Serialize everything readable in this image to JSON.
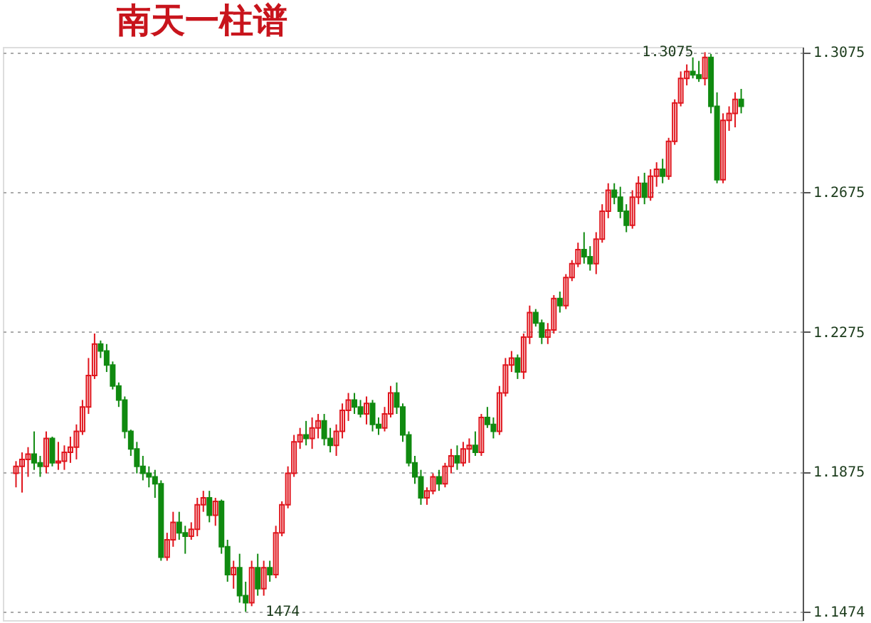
{
  "chart_data": {
    "type": "candlestick",
    "title": "南天一柱谱",
    "categories": [
      null,
      null,
      null,
      null,
      null,
      null,
      null,
      null,
      null,
      null,
      null,
      null,
      null,
      null,
      null,
      null,
      null,
      null,
      null,
      null,
      null,
      null,
      null,
      null,
      null,
      null,
      null,
      null,
      null,
      null,
      null,
      null,
      null,
      null,
      null,
      null,
      null,
      null,
      null,
      null,
      null,
      null,
      null,
      null,
      null,
      null,
      null,
      null,
      null,
      null,
      null,
      null,
      null,
      null,
      null,
      null,
      null,
      null,
      null,
      null,
      null,
      null,
      null,
      null,
      null,
      null,
      null,
      null,
      null,
      null,
      null,
      null,
      null,
      null,
      null,
      null,
      null,
      null,
      null,
      null,
      null,
      null,
      null,
      null,
      null,
      null,
      null,
      null,
      null,
      null,
      null,
      null,
      null,
      null,
      null,
      null,
      null,
      null,
      null,
      null,
      null,
      null,
      null,
      null,
      null,
      null,
      null,
      null,
      null,
      null,
      null,
      null,
      null,
      null,
      null,
      null,
      null,
      null,
      null,
      null,
      null
    ],
    "ohlc": [
      [
        1.187,
        1.1905,
        1.183,
        1.189
      ],
      [
        1.189,
        1.193,
        1.1815,
        1.191
      ],
      [
        1.191,
        1.1945,
        1.186,
        1.1925
      ],
      [
        1.1925,
        1.199,
        1.188,
        1.19
      ],
      [
        1.19,
        1.192,
        1.186,
        1.189
      ],
      [
        1.189,
        1.199,
        1.187,
        1.197
      ],
      [
        1.197,
        1.1975,
        1.189,
        1.19
      ],
      [
        1.19,
        1.196,
        1.188,
        1.1905
      ],
      [
        1.1905,
        1.195,
        1.188,
        1.193
      ],
      [
        1.193,
        1.1975,
        1.19,
        1.1945
      ],
      [
        1.1945,
        1.201,
        1.191,
        1.199
      ],
      [
        1.199,
        1.208,
        1.198,
        1.206
      ],
      [
        1.206,
        1.22,
        1.204,
        1.215
      ],
      [
        1.215,
        1.227,
        1.214,
        1.224
      ],
      [
        1.224,
        1.225,
        1.22,
        1.222
      ],
      [
        1.222,
        1.224,
        1.216,
        1.218
      ],
      [
        1.218,
        1.219,
        1.211,
        1.212
      ],
      [
        1.212,
        1.213,
        1.206,
        1.208
      ],
      [
        1.208,
        1.209,
        1.197,
        1.199
      ],
      [
        1.199,
        1.1995,
        1.192,
        1.194
      ],
      [
        1.194,
        1.196,
        1.187,
        1.189
      ],
      [
        1.189,
        1.192,
        1.185,
        1.187
      ],
      [
        1.187,
        1.189,
        1.183,
        1.186
      ],
      [
        1.186,
        1.188,
        1.18,
        1.184
      ],
      [
        1.184,
        1.185,
        1.162,
        1.163
      ],
      [
        1.163,
        1.17,
        1.162,
        1.168
      ],
      [
        1.168,
        1.176,
        1.166,
        1.173
      ],
      [
        1.173,
        1.176,
        1.168,
        1.17
      ],
      [
        1.17,
        1.172,
        1.164,
        1.169
      ],
      [
        1.169,
        1.173,
        1.168,
        1.171
      ],
      [
        1.171,
        1.18,
        1.169,
        1.178
      ],
      [
        1.178,
        1.182,
        1.176,
        1.18
      ],
      [
        1.18,
        1.182,
        1.173,
        1.175
      ],
      [
        1.175,
        1.18,
        1.172,
        1.179
      ],
      [
        1.179,
        1.1795,
        1.164,
        1.166
      ],
      [
        1.166,
        1.168,
        1.156,
        1.158
      ],
      [
        1.158,
        1.162,
        1.154,
        1.16
      ],
      [
        1.16,
        1.164,
        1.15,
        1.152
      ],
      [
        1.152,
        1.156,
        1.1474,
        1.15
      ],
      [
        1.15,
        1.162,
        1.149,
        1.16
      ],
      [
        1.16,
        1.164,
        1.152,
        1.154
      ],
      [
        1.154,
        1.162,
        1.152,
        1.16
      ],
      [
        1.16,
        1.162,
        1.156,
        1.158
      ],
      [
        1.158,
        1.172,
        1.157,
        1.17
      ],
      [
        1.17,
        1.179,
        1.169,
        1.178
      ],
      [
        1.178,
        1.189,
        1.177,
        1.187
      ],
      [
        1.187,
        1.198,
        1.186,
        1.196
      ],
      [
        1.196,
        1.2,
        1.194,
        1.198
      ],
      [
        1.198,
        1.202,
        1.195,
        1.197
      ],
      [
        1.197,
        1.203,
        1.194,
        1.2
      ],
      [
        1.2,
        1.204,
        1.197,
        1.202
      ],
      [
        1.202,
        1.204,
        1.195,
        1.197
      ],
      [
        1.197,
        1.2,
        1.193,
        1.195
      ],
      [
        1.195,
        1.201,
        1.192,
        1.199
      ],
      [
        1.199,
        1.207,
        1.197,
        1.205
      ],
      [
        1.205,
        1.21,
        1.202,
        1.208
      ],
      [
        1.208,
        1.21,
        1.204,
        1.206
      ],
      [
        1.206,
        1.208,
        1.203,
        1.204
      ],
      [
        1.204,
        1.209,
        1.201,
        1.207
      ],
      [
        1.207,
        1.208,
        1.199,
        1.201
      ],
      [
        1.201,
        1.203,
        1.198,
        1.2
      ],
      [
        1.2,
        1.206,
        1.199,
        1.204
      ],
      [
        1.204,
        1.212,
        1.203,
        1.21
      ],
      [
        1.21,
        1.213,
        1.204,
        1.206
      ],
      [
        1.206,
        1.207,
        1.196,
        1.198
      ],
      [
        1.198,
        1.199,
        1.189,
        1.19
      ],
      [
        1.19,
        1.192,
        1.184,
        1.186
      ],
      [
        1.186,
        1.188,
        1.178,
        1.18
      ],
      [
        1.18,
        1.183,
        1.178,
        1.182
      ],
      [
        1.182,
        1.187,
        1.181,
        1.186
      ],
      [
        1.186,
        1.188,
        1.182,
        1.184
      ],
      [
        1.184,
        1.19,
        1.183,
        1.189
      ],
      [
        1.189,
        1.194,
        1.187,
        1.192
      ],
      [
        1.192,
        1.195,
        1.188,
        1.19
      ],
      [
        1.19,
        1.196,
        1.189,
        1.194
      ],
      [
        1.194,
        1.197,
        1.19,
        1.195
      ],
      [
        1.195,
        1.199,
        1.192,
        1.193
      ],
      [
        1.193,
        1.204,
        1.192,
        1.203
      ],
      [
        1.203,
        1.206,
        1.2,
        1.201
      ],
      [
        1.201,
        1.203,
        1.197,
        1.199
      ],
      [
        1.199,
        1.212,
        1.198,
        1.21
      ],
      [
        1.21,
        1.22,
        1.209,
        1.218
      ],
      [
        1.218,
        1.222,
        1.216,
        1.22
      ],
      [
        1.22,
        1.221,
        1.214,
        1.216
      ],
      [
        1.216,
        1.227,
        1.214,
        1.226
      ],
      [
        1.226,
        1.235,
        1.224,
        1.233
      ],
      [
        1.233,
        1.234,
        1.229,
        1.23
      ],
      [
        1.23,
        1.231,
        1.224,
        1.226
      ],
      [
        1.226,
        1.23,
        1.224,
        1.228
      ],
      [
        1.228,
        1.238,
        1.227,
        1.237
      ],
      [
        1.237,
        1.239,
        1.233,
        1.235
      ],
      [
        1.235,
        1.244,
        1.234,
        1.243
      ],
      [
        1.243,
        1.248,
        1.242,
        1.247
      ],
      [
        1.247,
        1.253,
        1.246,
        1.251
      ],
      [
        1.251,
        1.256,
        1.247,
        1.249
      ],
      [
        1.249,
        1.252,
        1.245,
        1.247
      ],
      [
        1.247,
        1.256,
        1.244,
        1.254
      ],
      [
        1.254,
        1.264,
        1.253,
        1.262
      ],
      [
        1.262,
        1.27,
        1.26,
        1.268
      ],
      [
        1.268,
        1.27,
        1.264,
        1.266
      ],
      [
        1.266,
        1.269,
        1.26,
        1.262
      ],
      [
        1.262,
        1.264,
        1.256,
        1.258
      ],
      [
        1.258,
        1.268,
        1.257,
        1.266
      ],
      [
        1.266,
        1.272,
        1.264,
        1.27
      ],
      [
        1.27,
        1.273,
        1.264,
        1.266
      ],
      [
        1.266,
        1.274,
        1.265,
        1.272
      ],
      [
        1.272,
        1.276,
        1.269,
        1.274
      ],
      [
        1.274,
        1.277,
        1.27,
        1.272
      ],
      [
        1.272,
        1.283,
        1.271,
        1.282
      ],
      [
        1.282,
        1.294,
        1.281,
        1.293
      ],
      [
        1.293,
        1.302,
        1.292,
        1.3
      ],
      [
        1.3,
        1.304,
        1.298,
        1.302
      ],
      [
        1.302,
        1.306,
        1.3,
        1.301
      ],
      [
        1.301,
        1.305,
        1.299,
        1.3
      ],
      [
        1.3,
        1.3075,
        1.298,
        1.306
      ],
      [
        1.306,
        1.307,
        1.29,
        1.292
      ],
      [
        1.292,
        1.296,
        1.27,
        1.271
      ],
      [
        1.271,
        1.29,
        1.27,
        1.288
      ],
      [
        1.288,
        1.292,
        1.285,
        1.29
      ],
      [
        1.29,
        1.296,
        1.286,
        1.294
      ],
      [
        1.294,
        1.297,
        1.29,
        1.292
      ]
    ],
    "colors": [
      "#e0141c",
      "#e0141c",
      "#e0141c",
      "#108a10",
      "#108a10",
      "#e0141c",
      "#108a10",
      "#e0141c",
      "#e0141c",
      "#e0141c",
      "#e0141c",
      "#e0141c",
      "#e0141c",
      "#e0141c",
      "#108a10",
      "#108a10",
      "#108a10",
      "#108a10",
      "#108a10",
      "#108a10",
      "#108a10",
      "#108a10",
      "#108a10",
      "#108a10",
      "#108a10",
      "#e0141c",
      "#e0141c",
      "#108a10",
      "#108a10",
      "#e0141c",
      "#e0141c",
      "#e0141c",
      "#108a10",
      "#e0141c",
      "#108a10",
      "#108a10",
      "#e0141c",
      "#108a10",
      "#108a10",
      "#e0141c",
      "#108a10",
      "#e0141c",
      "#108a10",
      "#e0141c",
      "#e0141c",
      "#e0141c",
      "#e0141c",
      "#e0141c",
      "#108a10",
      "#e0141c",
      "#e0141c",
      "#108a10",
      "#108a10",
      "#e0141c",
      "#e0141c",
      "#e0141c",
      "#108a10",
      "#108a10",
      "#e0141c",
      "#108a10",
      "#108a10",
      "#e0141c",
      "#e0141c",
      "#108a10",
      "#108a10",
      "#108a10",
      "#108a10",
      "#108a10",
      "#e0141c",
      "#e0141c",
      "#108a10",
      "#e0141c",
      "#e0141c",
      "#108a10",
      "#e0141c",
      "#e0141c",
      "#108a10",
      "#e0141c",
      "#108a10",
      "#108a10",
      "#e0141c",
      "#e0141c",
      "#e0141c",
      "#108a10",
      "#e0141c",
      "#e0141c",
      "#108a10",
      "#108a10",
      "#e0141c",
      "#e0141c",
      "#108a10",
      "#e0141c",
      "#e0141c",
      "#e0141c",
      "#108a10",
      "#108a10",
      "#e0141c",
      "#e0141c",
      "#e0141c",
      "#108a10",
      "#108a10",
      "#108a10",
      "#e0141c",
      "#e0141c",
      "#108a10",
      "#e0141c",
      "#e0141c",
      "#108a10",
      "#e0141c",
      "#e0141c",
      "#e0141c",
      "#e0141c",
      "#108a10",
      "#108a10",
      "#e0141c",
      "#108a10",
      "#108a10",
      "#e0141c",
      "#e0141c",
      "#e0141c",
      "#108a10"
    ],
    "ylim": [
      1.145,
      1.309
    ],
    "yticks": [
      1.1474,
      1.1875,
      1.2275,
      1.2675,
      1.3075
    ],
    "annotations": [
      "1.3075",
      "1474"
    ],
    "grid": "y",
    "tick_labels": "y"
  }
}
